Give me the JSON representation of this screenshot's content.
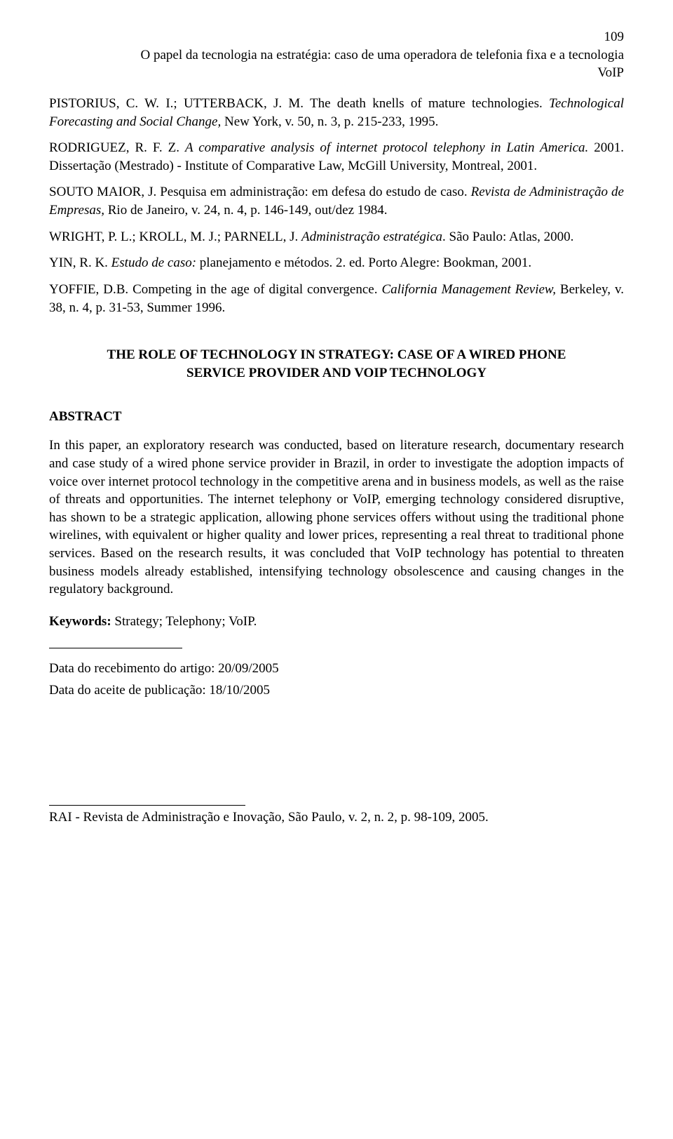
{
  "page_number": "109",
  "header_line1": "O papel da tecnologia na estratégia: caso de uma operadora de telefonia fixa e a tecnologia",
  "header_line2": "VoIP",
  "refs": {
    "r1_a": "PISTORIUS, C. W. I.; UTTERBACK, J. M. The death knells of mature technologies. ",
    "r1_b": "Technological Forecasting and Social Change,",
    "r1_c": " New York, v. 50, n. 3, p. 215-233, 1995.",
    "r2_a": "RODRIGUEZ, R. F. Z. ",
    "r2_b": "A comparative analysis of internet protocol telephony in Latin America. ",
    "r2_c": "2001. Dissertação (Mestrado) - Institute of Comparative Law, McGill University, Montreal, 2001.",
    "r3_a": "SOUTO MAIOR, J. Pesquisa em administração: em defesa do estudo de caso. ",
    "r3_b": "Revista de Administração de Empresas,",
    "r3_c": " Rio de Janeiro, v. 24, n. 4, p. 146-149, out/dez 1984.",
    "r4_a": "WRIGHT, P. L.; KROLL, M. J.; PARNELL, J. ",
    "r4_b": "Administração estratégica",
    "r4_c": ". São Paulo: Atlas, 2000.",
    "r5_a": "YIN, R. K. ",
    "r5_b": "Estudo de caso:",
    "r5_c": " planejamento e métodos. 2. ed. Porto Alegre: Bookman, 2001.",
    "r6_a": "YOFFIE, D.B. Competing in the age of digital convergence. ",
    "r6_b": "California Management Review,",
    "r6_c": " Berkeley, v. 38, n. 4, p. 31-53, Summer 1996."
  },
  "section_title_l1": "THE ROLE OF TECHNOLOGY IN STRATEGY: CASE OF A WIRED PHONE",
  "section_title_l2": "SERVICE PROVIDER AND VOIP TECHNOLOGY",
  "abstract_label": "ABSTRACT",
  "abstract_body": "In this paper, an exploratory research was conducted, based on literature research, documentary research and case study of a wired phone service provider in Brazil, in order to investigate the adoption impacts of voice over internet protocol technology in the competitive arena and in business models, as well as the raise of threats and opportunities. The internet telephony or VoIP, emerging technology considered disruptive, has shown to be a strategic application, allowing phone services offers without using the traditional phone wirelines, with equivalent or higher quality and lower prices, representing a real threat to traditional phone services. Based on the research results, it was concluded that VoIP technology has potential to threaten business models already established, intensifying technology obsolescence and causing changes in the regulatory background.",
  "keywords_label": "Keywords:",
  "keywords_value": " Strategy; Telephony; VoIP.",
  "date_received": "Data do recebimento do artigo: 20/09/2005",
  "date_accepted": "Data do aceite de publicação: 18/10/2005",
  "footer": "RAI - Revista de Administração e Inovação, São Paulo, v. 2,  n. 2, p. 98-109, 2005."
}
